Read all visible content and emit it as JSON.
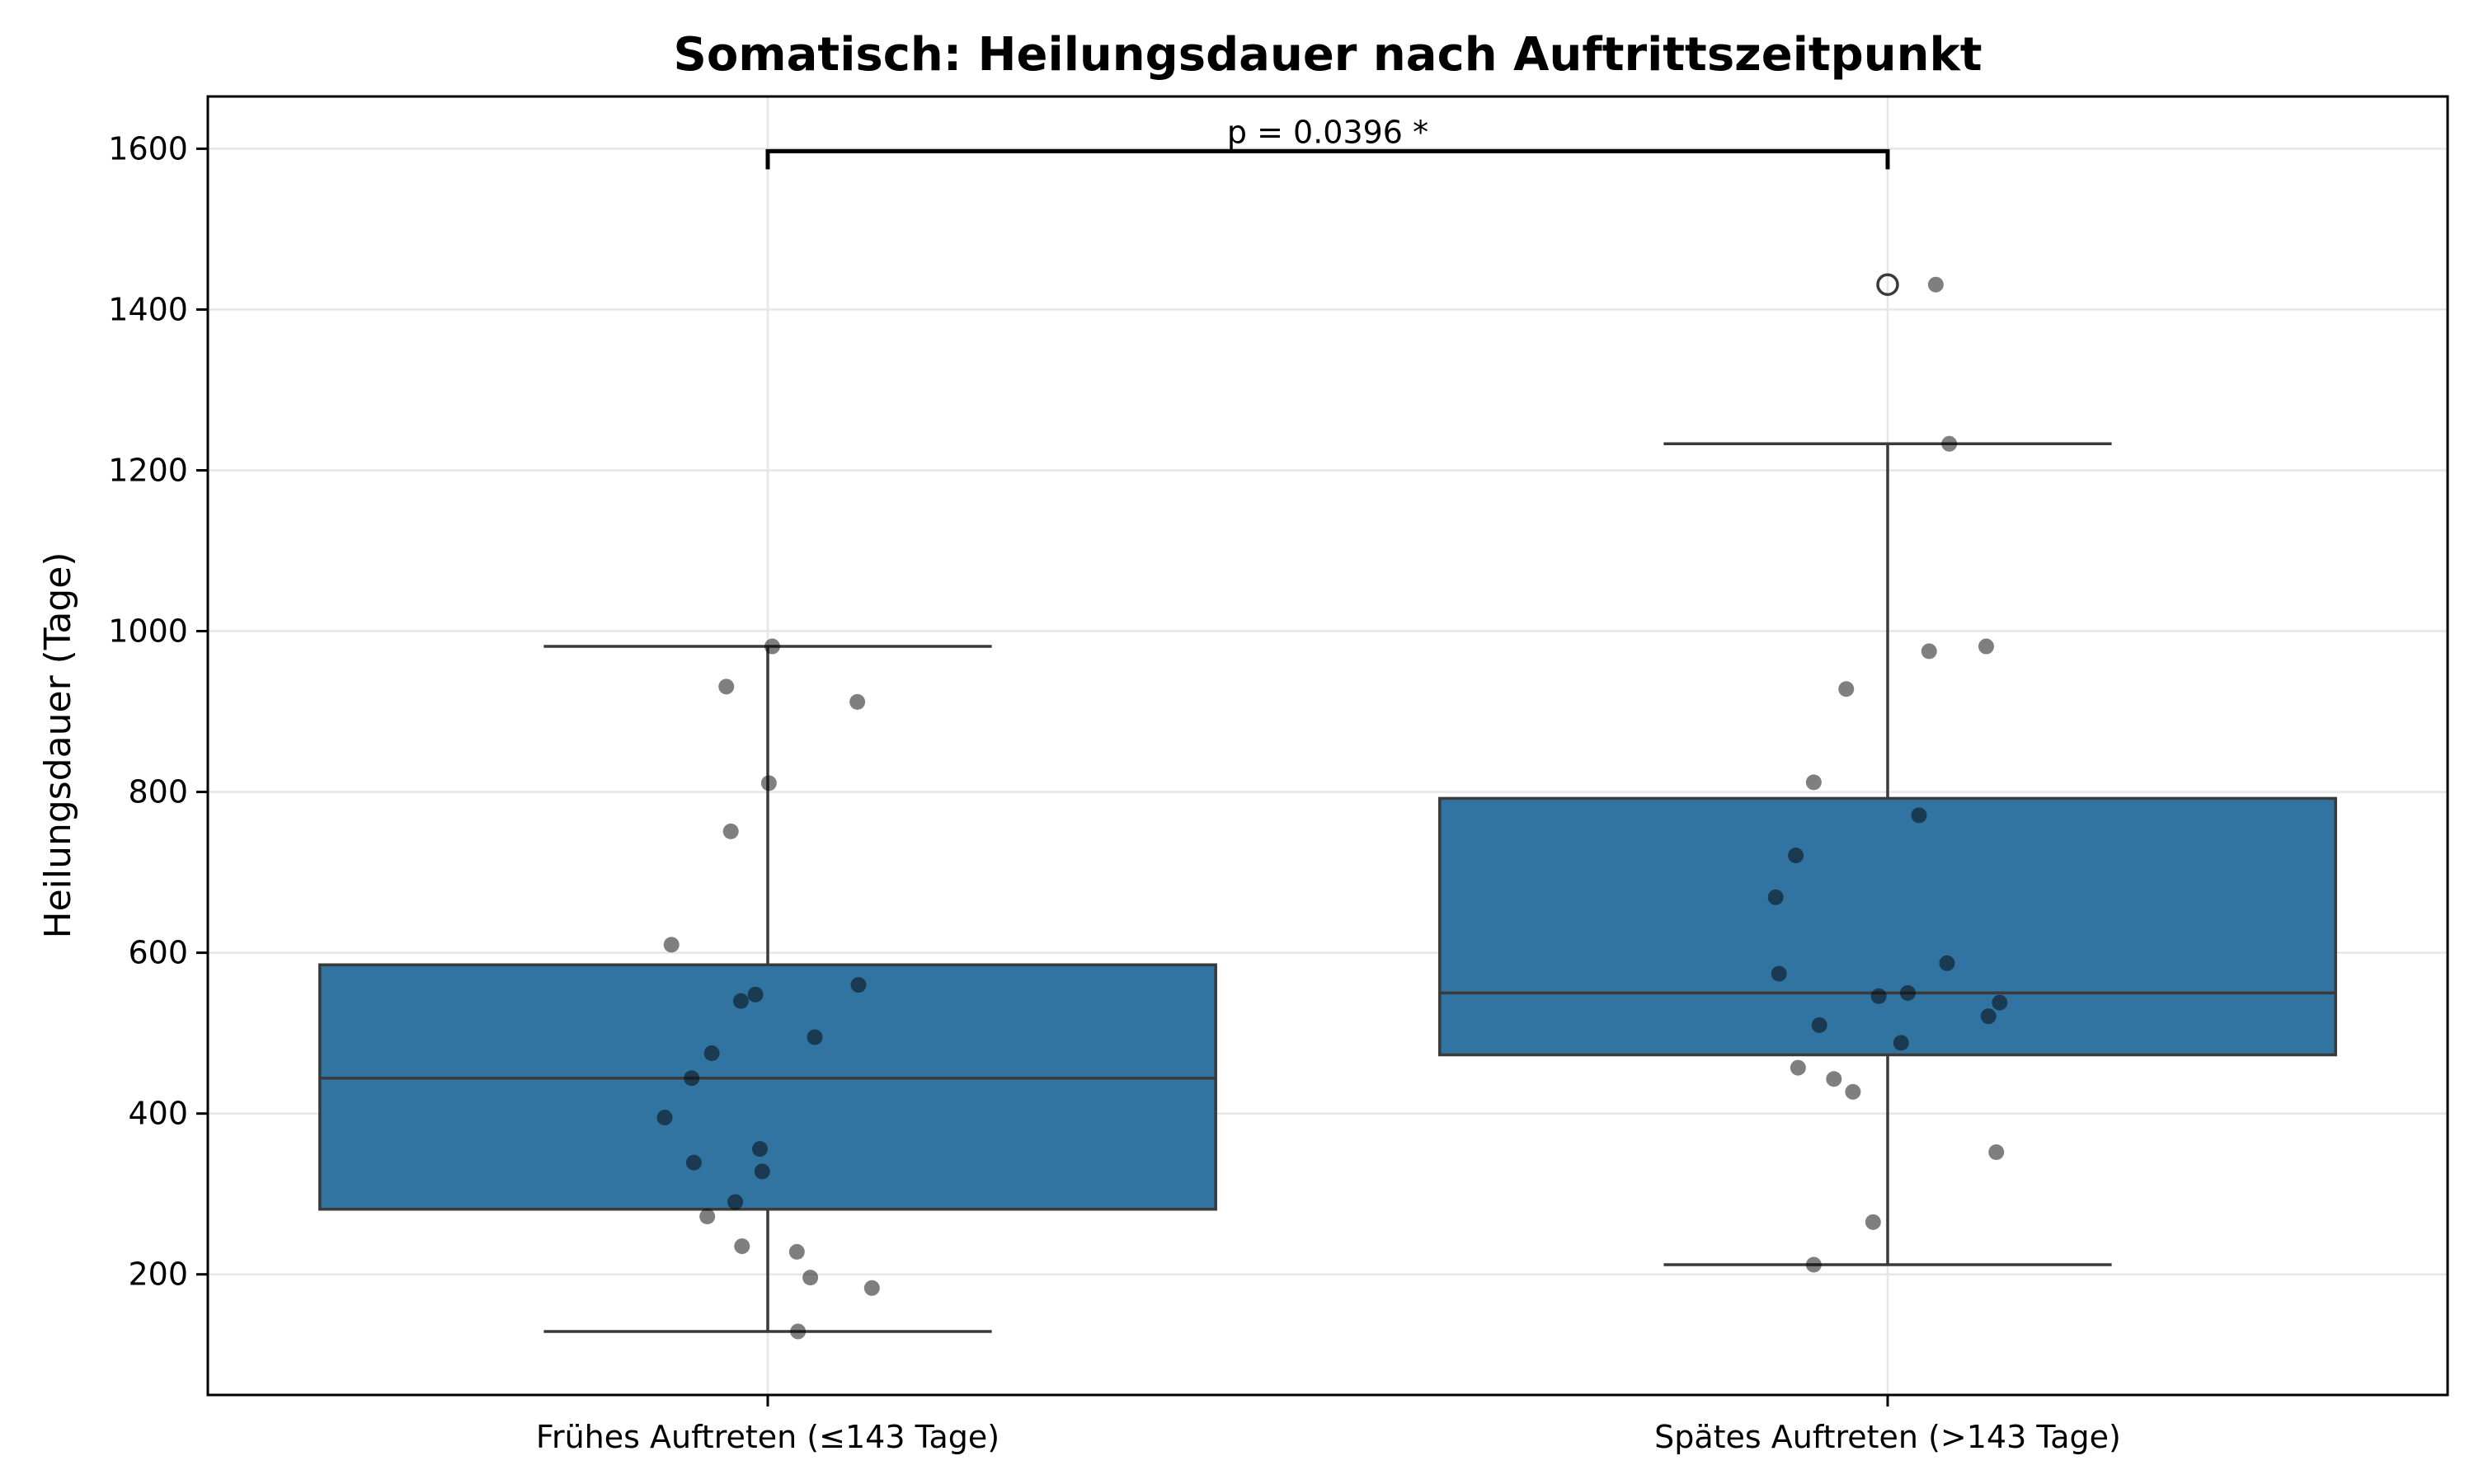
{
  "chart_data": {
    "type": "box",
    "title": "Somatisch: Heilungsdauer nach Auftrittszeitpunkt",
    "xlabel": "",
    "ylabel": "Heilungsdauer (Tage)",
    "ylim": [
      50,
      1665
    ],
    "yticks": [
      200,
      400,
      600,
      800,
      1000,
      1200,
      1400,
      1600
    ],
    "grid": true,
    "categories": [
      "Frühes Auftreten (≤143 Tage)",
      "Spätes Auftreten (>143 Tage)"
    ],
    "colors": {
      "box": "#3274a1",
      "edge": "#3a3a3a",
      "point": "#000000"
    },
    "boxes": [
      {
        "q1": 281,
        "median": 444,
        "q3": 585,
        "whisker_low": 129,
        "whisker_high": 981,
        "outliers": []
      },
      {
        "q1": 473,
        "median": 550,
        "q3": 792,
        "whisker_low": 212,
        "whisker_high": 1233,
        "outliers": [
          1431
        ]
      }
    ],
    "points": [
      [
        {
          "j": 0.004,
          "y": 981
        },
        {
          "j": -0.037,
          "y": 931
        },
        {
          "j": 0.08,
          "y": 912
        },
        {
          "j": 0.001,
          "y": 811
        },
        {
          "j": -0.033,
          "y": 751
        },
        {
          "j": -0.086,
          "y": 610
        },
        {
          "j": 0.081,
          "y": 560
        },
        {
          "j": -0.011,
          "y": 548
        },
        {
          "j": -0.024,
          "y": 540
        },
        {
          "j": 0.042,
          "y": 495
        },
        {
          "j": -0.05,
          "y": 475
        },
        {
          "j": -0.068,
          "y": 444
        },
        {
          "j": -0.092,
          "y": 395
        },
        {
          "j": -0.007,
          "y": 356
        },
        {
          "j": -0.066,
          "y": 339
        },
        {
          "j": -0.005,
          "y": 328
        },
        {
          "j": -0.029,
          "y": 290
        },
        {
          "j": -0.054,
          "y": 272
        },
        {
          "j": -0.023,
          "y": 235
        },
        {
          "j": 0.026,
          "y": 228
        },
        {
          "j": 0.038,
          "y": 196
        },
        {
          "j": 0.093,
          "y": 183
        },
        {
          "j": 0.027,
          "y": 129
        }
      ],
      [
        {
          "j": 0.043,
          "y": 1431
        },
        {
          "j": 0.055,
          "y": 1233
        },
        {
          "j": 0.088,
          "y": 981
        },
        {
          "j": 0.037,
          "y": 975
        },
        {
          "j": -0.037,
          "y": 928
        },
        {
          "j": -0.066,
          "y": 812
        },
        {
          "j": 0.028,
          "y": 771
        },
        {
          "j": -0.082,
          "y": 721
        },
        {
          "j": -0.1,
          "y": 669
        },
        {
          "j": 0.053,
          "y": 587
        },
        {
          "j": -0.097,
          "y": 574
        },
        {
          "j": 0.1,
          "y": 538
        },
        {
          "j": 0.018,
          "y": 550
        },
        {
          "j": -0.008,
          "y": 546
        },
        {
          "j": 0.09,
          "y": 521
        },
        {
          "j": -0.061,
          "y": 510
        },
        {
          "j": 0.012,
          "y": 488
        },
        {
          "j": -0.08,
          "y": 457
        },
        {
          "j": -0.048,
          "y": 443
        },
        {
          "j": -0.031,
          "y": 427
        },
        {
          "j": 0.097,
          "y": 352
        },
        {
          "j": -0.013,
          "y": 265
        },
        {
          "j": -0.066,
          "y": 212
        }
      ]
    ],
    "annotation": {
      "text": "p = 0.0396 *",
      "y": 1597
    }
  }
}
